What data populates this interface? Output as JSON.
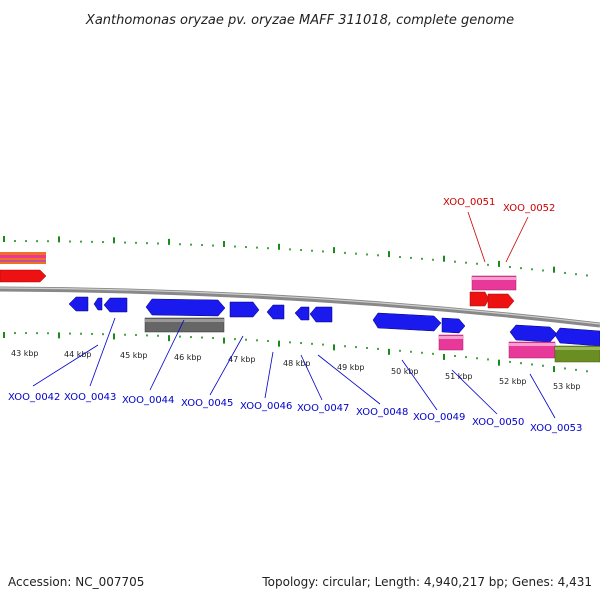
{
  "title": "Xanthomonas oryzae pv. oryzae MAFF 311018, complete genome",
  "footer": {
    "accession": "Accession: NC_007705",
    "topology": "Topology: circular; Length: 4,940,217 bp; Genes: 4,431"
  },
  "colors": {
    "backbone": "#888888",
    "forward_gene": "#1a1aee",
    "reverse_gene": "#1a1aee",
    "rna_pink": "#e8389a",
    "red_gene": "#ee1111",
    "gray_feature": "#666666",
    "olive_feature": "#6b8e23",
    "tick_green": "#1a8a1a",
    "label_blue": "#0000cc",
    "label_red": "#cc0000"
  },
  "scale_labels": [
    "43 kbp",
    "44 kbp",
    "45 kbp",
    "46 kbp",
    "47 kbp",
    "48 kbp",
    "49 kbp",
    "50 kbp",
    "51 kbp",
    "52 kbp",
    "53 kbp"
  ],
  "genes": [
    {
      "id": "XOO_0042",
      "strand": "-"
    },
    {
      "id": "XOO_0043",
      "strand": "-"
    },
    {
      "id": "XOO_0044",
      "strand": "+"
    },
    {
      "id": "XOO_0045",
      "strand": "+"
    },
    {
      "id": "XOO_0046",
      "strand": "-"
    },
    {
      "id": "XOO_0047",
      "strand": "-"
    },
    {
      "id": "XOO_0048",
      "strand": "+"
    },
    {
      "id": "XOO_0049",
      "strand": "+"
    },
    {
      "id": "XOO_0050",
      "strand": "+"
    },
    {
      "id": "XOO_0051",
      "strand": "+"
    },
    {
      "id": "XOO_0052",
      "strand": "+"
    },
    {
      "id": "XOO_0053",
      "strand": "+"
    }
  ]
}
